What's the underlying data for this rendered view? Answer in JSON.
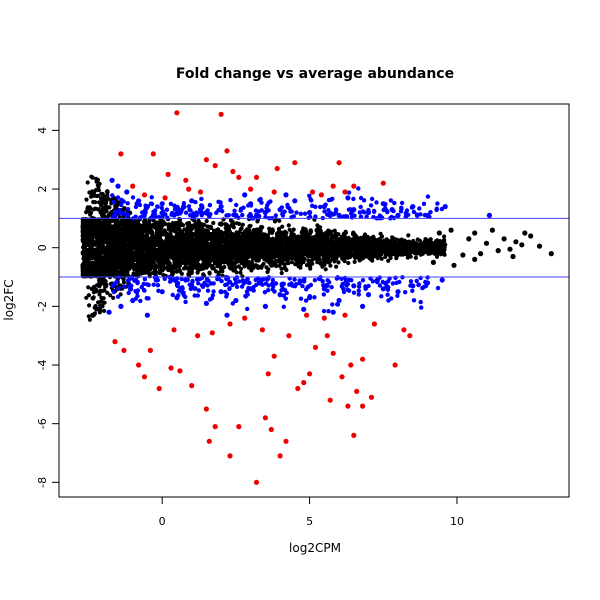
{
  "chart_data": {
    "type": "scatter",
    "title": "Fold change vs average abundance",
    "xlabel": "log2CPM",
    "ylabel": "log2FC",
    "xlim": [
      -3.5,
      13.8
    ],
    "ylim": [
      -8.5,
      4.9
    ],
    "xticks": [
      0,
      5,
      10
    ],
    "yticks": [
      -8,
      -6,
      -4,
      -2,
      0,
      2,
      4
    ],
    "grid": false,
    "hlines": [
      1,
      -1
    ],
    "hline_color": "#4040ff",
    "colors": {
      "background": "#000000",
      "moderate": "#0000ff",
      "significant": "#ee0000"
    },
    "series": [
      {
        "color": "#000000",
        "points": [
          [
            12.5,
            0.4
          ],
          [
            12.0,
            0.2
          ],
          [
            11.6,
            0.3
          ],
          [
            12.2,
            0.1
          ],
          [
            13.2,
            -0.2
          ],
          [
            11.4,
            -0.1
          ],
          [
            11.0,
            0.15
          ],
          [
            10.8,
            -0.2
          ],
          [
            10.4,
            0.3
          ],
          [
            11.8,
            -0.05
          ],
          [
            10.2,
            -0.25
          ],
          [
            12.8,
            0.05
          ],
          [
            9.8,
            0.6
          ],
          [
            9.9,
            -0.6
          ],
          [
            9.4,
            0.5
          ],
          [
            9.2,
            -0.5
          ],
          [
            10.6,
            0.5
          ],
          [
            10.6,
            -0.4
          ],
          [
            11.2,
            0.6
          ],
          [
            12.3,
            0.5
          ],
          [
            11.9,
            -0.3
          ]
        ]
      },
      {
        "color": "#0000ff",
        "points": [
          [
            -1.7,
            2.3
          ],
          [
            -1.5,
            2.1
          ],
          [
            -1.2,
            1.9
          ],
          [
            -0.8,
            1.6
          ],
          [
            -0.5,
            1.4
          ],
          [
            0.0,
            1.5
          ],
          [
            0.5,
            1.3
          ],
          [
            1.0,
            1.6
          ],
          [
            1.5,
            1.2
          ],
          [
            2.0,
            1.4
          ],
          [
            2.5,
            1.1
          ],
          [
            3.0,
            1.5
          ],
          [
            3.5,
            1.2
          ],
          [
            4.0,
            1.3
          ],
          [
            4.5,
            1.6
          ],
          [
            5.0,
            1.2
          ],
          [
            5.5,
            1.4
          ],
          [
            6.0,
            1.1
          ],
          [
            6.5,
            1.3
          ],
          [
            7.0,
            1.2
          ],
          [
            7.5,
            1.5
          ],
          [
            8.0,
            1.1
          ],
          [
            8.5,
            1.4
          ],
          [
            9.0,
            1.1
          ],
          [
            9.6,
            1.4
          ],
          [
            11.1,
            1.1
          ],
          [
            4.2,
            1.8
          ],
          [
            6.3,
            1.7
          ],
          [
            2.8,
            1.8
          ],
          [
            1.3,
            1.3
          ],
          [
            -0.3,
            1.1
          ],
          [
            3.2,
            1.1
          ],
          [
            5.7,
            1.1
          ],
          [
            7.8,
            1.3
          ],
          [
            -1.4,
            -2.0
          ],
          [
            -1.0,
            -1.8
          ],
          [
            -0.5,
            -2.3
          ],
          [
            -1.8,
            -2.2
          ],
          [
            0.0,
            -1.5
          ],
          [
            0.5,
            -1.7
          ],
          [
            1.0,
            -1.3
          ],
          [
            1.5,
            -1.9
          ],
          [
            2.0,
            -1.5
          ],
          [
            2.5,
            -1.8
          ],
          [
            3.0,
            -1.4
          ],
          [
            3.5,
            -2.0
          ],
          [
            4.0,
            -1.6
          ],
          [
            4.5,
            -1.3
          ],
          [
            5.0,
            -1.7
          ],
          [
            5.5,
            -1.4
          ],
          [
            6.0,
            -1.8
          ],
          [
            6.5,
            -1.3
          ],
          [
            7.0,
            -1.6
          ],
          [
            7.5,
            -1.4
          ],
          [
            8.0,
            -1.5
          ],
          [
            8.5,
            -1.3
          ],
          [
            9.0,
            -1.2
          ],
          [
            9.5,
            -1.1
          ],
          [
            5.8,
            -2.2
          ],
          [
            2.2,
            -2.3
          ],
          [
            4.8,
            -2.1
          ],
          [
            6.8,
            -2.0
          ],
          [
            3.3,
            -1.2
          ],
          [
            7.3,
            -1.1
          ],
          [
            0.8,
            -1.1
          ],
          [
            -0.2,
            -1.1
          ]
        ]
      },
      {
        "color": "#ee0000",
        "points": [
          [
            0.5,
            4.6
          ],
          [
            2.0,
            4.55
          ],
          [
            2.2,
            3.3
          ],
          [
            -1.4,
            3.2
          ],
          [
            -0.3,
            3.2
          ],
          [
            4.5,
            2.9
          ],
          [
            6.0,
            2.9
          ],
          [
            1.5,
            3.0
          ],
          [
            1.8,
            2.8
          ],
          [
            2.4,
            2.6
          ],
          [
            2.6,
            2.4
          ],
          [
            3.2,
            2.4
          ],
          [
            3.9,
            2.7
          ],
          [
            0.2,
            2.5
          ],
          [
            0.8,
            2.3
          ],
          [
            -1.0,
            2.1
          ],
          [
            -0.6,
            1.8
          ],
          [
            0.1,
            1.7
          ],
          [
            0.9,
            2.0
          ],
          [
            1.3,
            1.9
          ],
          [
            3.0,
            2.0
          ],
          [
            3.8,
            1.9
          ],
          [
            5.1,
            1.9
          ],
          [
            5.4,
            1.8
          ],
          [
            6.2,
            1.9
          ],
          [
            6.5,
            2.1
          ],
          [
            7.5,
            2.2
          ],
          [
            5.8,
            2.1
          ],
          [
            -1.6,
            -3.2
          ],
          [
            -1.3,
            -3.5
          ],
          [
            -0.8,
            -4.0
          ],
          [
            -0.6,
            -4.4
          ],
          [
            -0.1,
            -4.8
          ],
          [
            0.3,
            -4.1
          ],
          [
            0.6,
            -4.2
          ],
          [
            1.0,
            -4.7
          ],
          [
            1.5,
            -5.5
          ],
          [
            1.6,
            -6.6
          ],
          [
            1.8,
            -6.1
          ],
          [
            2.3,
            -7.1
          ],
          [
            2.6,
            -6.1
          ],
          [
            3.2,
            -8.0
          ],
          [
            3.5,
            -5.8
          ],
          [
            3.7,
            -6.2
          ],
          [
            4.0,
            -7.1
          ],
          [
            4.2,
            -6.6
          ],
          [
            4.6,
            -4.8
          ],
          [
            5.0,
            -4.3
          ],
          [
            5.2,
            -3.4
          ],
          [
            5.6,
            -3.0
          ],
          [
            5.8,
            -3.6
          ],
          [
            6.1,
            -4.4
          ],
          [
            6.3,
            -5.4
          ],
          [
            6.4,
            -4.0
          ],
          [
            6.5,
            -6.4
          ],
          [
            6.6,
            -4.9
          ],
          [
            6.8,
            -5.4
          ],
          [
            7.1,
            -5.1
          ],
          [
            7.9,
            -4.0
          ],
          [
            8.2,
            -2.8
          ],
          [
            8.4,
            -3.0
          ],
          [
            0.4,
            -2.8
          ],
          [
            1.7,
            -2.9
          ],
          [
            2.3,
            -2.6
          ],
          [
            3.6,
            -4.3
          ],
          [
            3.8,
            -3.7
          ],
          [
            4.3,
            -3.0
          ],
          [
            4.8,
            -4.6
          ],
          [
            5.5,
            -2.4
          ],
          [
            6.2,
            -2.3
          ],
          [
            6.8,
            -3.8
          ],
          [
            7.2,
            -2.6
          ],
          [
            -0.4,
            -3.5
          ],
          [
            2.8,
            -2.4
          ],
          [
            4.9,
            -2.3
          ],
          [
            3.4,
            -2.8
          ],
          [
            1.2,
            -3.0
          ],
          [
            5.7,
            -5.2
          ]
        ]
      }
    ]
  }
}
